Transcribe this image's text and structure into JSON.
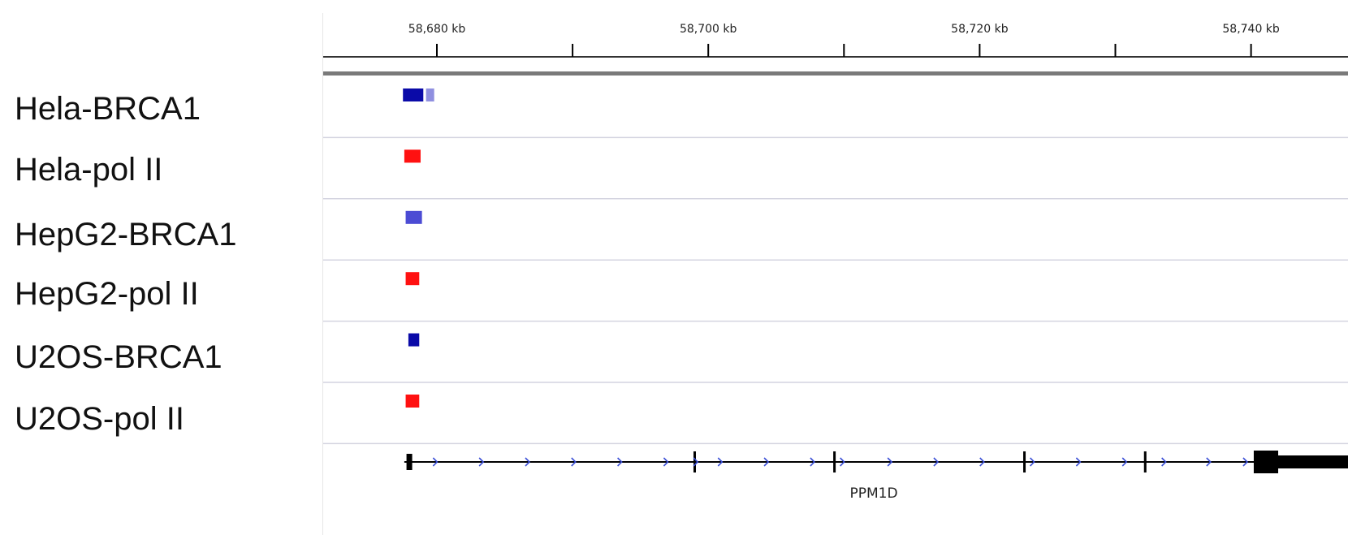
{
  "tracks": [
    {
      "label": "Hela-BRCA1",
      "type": "BRCA1",
      "peaks": [
        {
          "start": 58677.5,
          "end": 58679.0,
          "color": "#0a0aa8"
        },
        {
          "start": 58679.2,
          "end": 58679.8,
          "color": "#8f8fe0"
        }
      ]
    },
    {
      "label": "Hela-pol II",
      "type": "polII",
      "peaks": [
        {
          "start": 58677.6,
          "end": 58678.8,
          "color": "#ff1111"
        }
      ]
    },
    {
      "label": "HepG2-BRCA1",
      "type": "BRCA1",
      "peaks": [
        {
          "start": 58677.7,
          "end": 58678.9,
          "color": "#4b4bd4"
        }
      ]
    },
    {
      "label": "HepG2-pol II",
      "type": "polII",
      "peaks": [
        {
          "start": 58677.7,
          "end": 58678.7,
          "color": "#ff1111"
        }
      ]
    },
    {
      "label": "U2OS-BRCA1",
      "type": "BRCA1",
      "peaks": [
        {
          "start": 58677.9,
          "end": 58678.7,
          "color": "#0a0aa8"
        }
      ]
    },
    {
      "label": "U2OS-pol II",
      "type": "polII",
      "peaks": [
        {
          "start": 58677.7,
          "end": 58678.7,
          "color": "#ff1111"
        }
      ]
    }
  ],
  "ruler": {
    "major_ticks": [
      {
        "kb": 58680,
        "label": "58,680 kb"
      },
      {
        "kb": 58700,
        "label": "58,700 kb"
      },
      {
        "kb": 58720,
        "label": "58,720 kb"
      },
      {
        "kb": 58740,
        "label": "58,740 kb"
      }
    ],
    "minor_ticks_kb": [
      58690,
      58710,
      58730
    ]
  },
  "gene": {
    "name": "PPM1D",
    "start": 58677.6,
    "end": 58742.0,
    "color": "#000000",
    "arrow_color": "#3b4fd6",
    "exons": [
      58678.0,
      58699.0,
      58709.3,
      58723.3,
      58732.2
    ],
    "utr_end": {
      "start": 58740.2,
      "end": 58742.0
    },
    "arrows_kb": [
      58679.9,
      58683.3,
      58686.7,
      58690.1,
      58693.5,
      58696.9,
      58699.1,
      58700.9,
      58704.3,
      58707.7,
      58709.9,
      58713.4,
      58716.8,
      58720.2,
      58723.9,
      58727.3,
      58730.7,
      58733.6,
      58736.9,
      58739.6
    ]
  },
  "colors": {
    "brca1": "#0a0aa8",
    "pol2": "#ff1111",
    "separator": "#d4d4e0",
    "thick_line": "#7a7a7a"
  }
}
